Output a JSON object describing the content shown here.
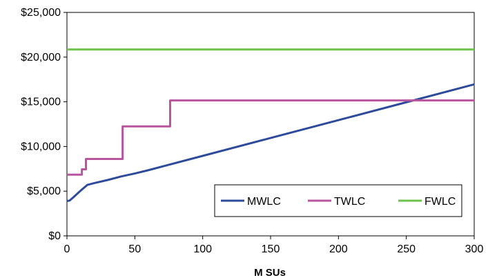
{
  "chart_data": {
    "type": "line",
    "title": "",
    "xlabel": "M SUs",
    "ylabel": "",
    "xlim": [
      0,
      300
    ],
    "ylim": [
      0,
      25000
    ],
    "xticks": [
      0,
      50,
      100,
      150,
      200,
      250,
      300
    ],
    "yticks": [
      0,
      5000,
      10000,
      15000,
      20000,
      25000
    ],
    "xtick_labels": [
      "0",
      "50",
      "100",
      "150",
      "200",
      "250",
      "300"
    ],
    "ytick_labels": [
      "$0",
      "$5,000",
      "$10,000",
      "$15,000",
      "$20,000",
      "$25,000"
    ],
    "grid": false,
    "legend_position": "bottom-right",
    "series": [
      {
        "name": "MWLC",
        "color": "#2E4B9B",
        "points": [
          [
            0,
            3900
          ],
          [
            2,
            3950
          ],
          [
            5,
            4350
          ],
          [
            10,
            5050
          ],
          [
            15,
            5700
          ],
          [
            20,
            5900
          ],
          [
            30,
            6250
          ],
          [
            40,
            6650
          ],
          [
            50,
            6980
          ],
          [
            60,
            7350
          ],
          [
            75,
            7950
          ],
          [
            100,
            8950
          ],
          [
            150,
            10950
          ],
          [
            200,
            12950
          ],
          [
            250,
            14950
          ],
          [
            300,
            16950
          ]
        ]
      },
      {
        "name": "TWLC",
        "color": "#B8559F",
        "points": [
          [
            0,
            6850
          ],
          [
            11,
            6850
          ],
          [
            11,
            7450
          ],
          [
            14,
            7450
          ],
          [
            14,
            8600
          ],
          [
            41,
            8600
          ],
          [
            41,
            12250
          ],
          [
            76,
            12250
          ],
          [
            76,
            15150
          ],
          [
            300,
            15150
          ]
        ]
      },
      {
        "name": "FWLC",
        "color": "#6CC24A",
        "points": [
          [
            0,
            20850
          ],
          [
            300,
            20850
          ]
        ]
      }
    ]
  }
}
